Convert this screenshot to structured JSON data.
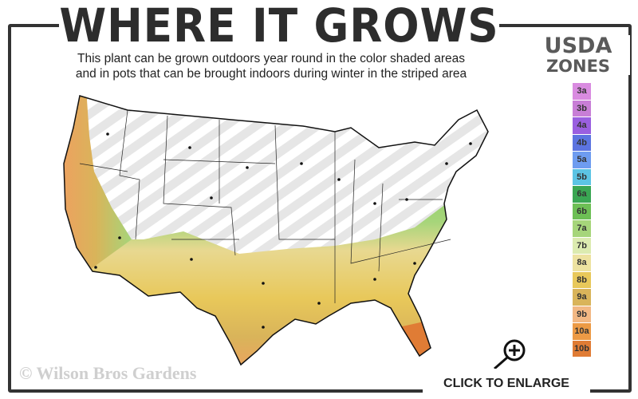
{
  "header": {
    "title": "WHERE IT GROWS",
    "subtitle_line1": "This plant can be grown outdoors year round in the color shaded areas",
    "subtitle_line2": "and in pots that can be brought indoors during winter in the striped area"
  },
  "legend": {
    "title_line1": "USDA",
    "title_line2": "ZONES",
    "zones": [
      {
        "label": "3a",
        "color": "#d98be0"
      },
      {
        "label": "3b",
        "color": "#c87ed6"
      },
      {
        "label": "4a",
        "color": "#9a5fe0"
      },
      {
        "label": "4b",
        "color": "#5c74e0"
      },
      {
        "label": "5a",
        "color": "#6e9cf0"
      },
      {
        "label": "5b",
        "color": "#5cc4e4"
      },
      {
        "label": "6a",
        "color": "#3aa653"
      },
      {
        "label": "6b",
        "color": "#6dbf55"
      },
      {
        "label": "7a",
        "color": "#a6d57a"
      },
      {
        "label": "7b",
        "color": "#dcebb0"
      },
      {
        "label": "8a",
        "color": "#ede2a0"
      },
      {
        "label": "8b",
        "color": "#e8c85a"
      },
      {
        "label": "9a",
        "color": "#d9b45a"
      },
      {
        "label": "9b",
        "color": "#f2b884"
      },
      {
        "label": "10a",
        "color": "#ec9a45"
      },
      {
        "label": "10b",
        "color": "#e07c35"
      }
    ]
  },
  "footer": {
    "copyright": "© Wilson Bros Gardens",
    "enlarge_label": "CLICK TO ENLARGE"
  }
}
